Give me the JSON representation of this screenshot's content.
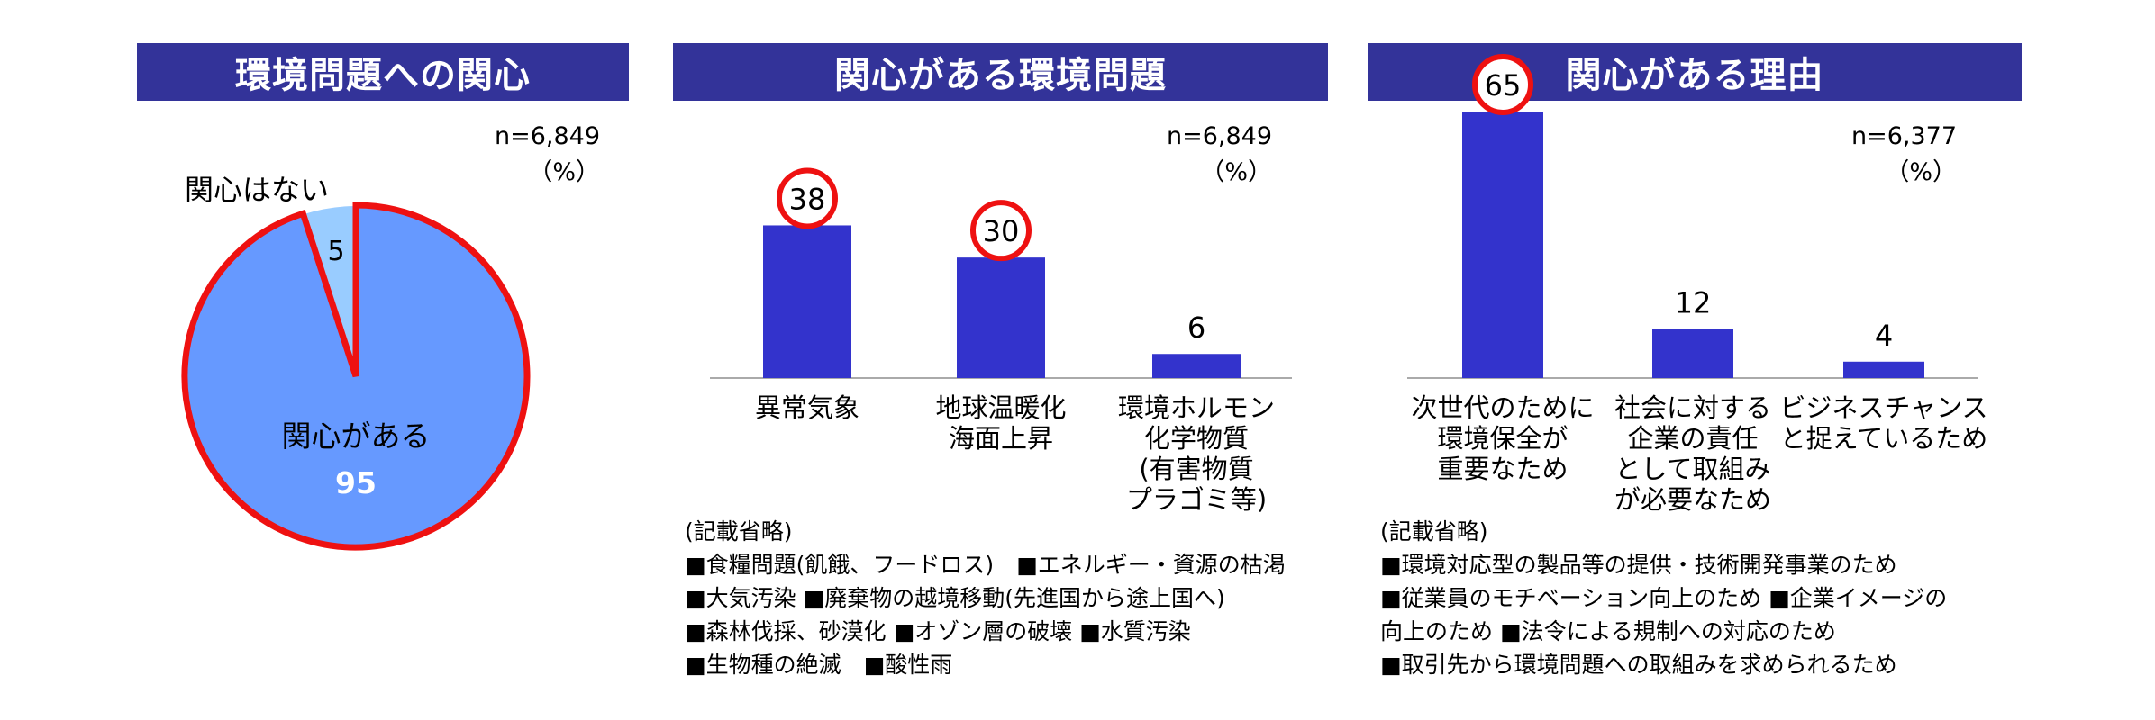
{
  "colors": {
    "header_bg": "#333399",
    "bar": "#3333cc",
    "pie_main": "#6699ff",
    "pie_minor": "#99ccff",
    "highlight": "#ee1111"
  },
  "chart_data": [
    {
      "type": "pie",
      "title": "環境問題への関心",
      "n_label": "n=6,849",
      "unit_label": "（%）",
      "slices": [
        {
          "label": "関心はない",
          "value": 5,
          "color": "#99ccff"
        },
        {
          "label": "関心がある",
          "value": 95,
          "color": "#6699ff"
        }
      ]
    },
    {
      "type": "bar",
      "title": "関心がある環境問題",
      "n_label": "n=6,849",
      "unit_label": "（%）",
      "categories": [
        "異常気象",
        "地球温暖化\n海面上昇",
        "環境ホルモン\n化学物質\n(有害物質\nプラゴミ等)"
      ],
      "values": [
        38,
        30,
        6
      ],
      "highlighted": [
        true,
        true,
        false
      ],
      "ylim": [
        0,
        65
      ],
      "notes_title": "(記載省略)",
      "notes": [
        "■食糧問題(飢餓、フードロス)　■エネルギー・資源の枯渇",
        "■大気汚染 ■廃棄物の越境移動(先進国から途上国へ)",
        "■森林伐採、砂漠化 ■オゾン層の破壊 ■水質汚染",
        "■生物種の絶滅　■酸性雨"
      ]
    },
    {
      "type": "bar",
      "title": "関心がある理由",
      "n_label": "n=6,377",
      "unit_label": "（%）",
      "categories": [
        "次世代のために\n環境保全が\n重要なため",
        "社会に対する\n企業の責任\nとして取組み\nが必要なため",
        "ビジネスチャンス\nと捉えているため"
      ],
      "values": [
        65,
        12,
        4
      ],
      "highlighted": [
        true,
        false,
        false
      ],
      "ylim": [
        0,
        65
      ],
      "notes_title": "(記載省略)",
      "notes": [
        "■環境対応型の製品等の提供・技術開発事業のため",
        "■従業員のモチベーション向上のため ■企業イメージの",
        "向上のため ■法令による規制への対応のため",
        "■取引先から環境問題への取組みを求められるため"
      ]
    }
  ]
}
